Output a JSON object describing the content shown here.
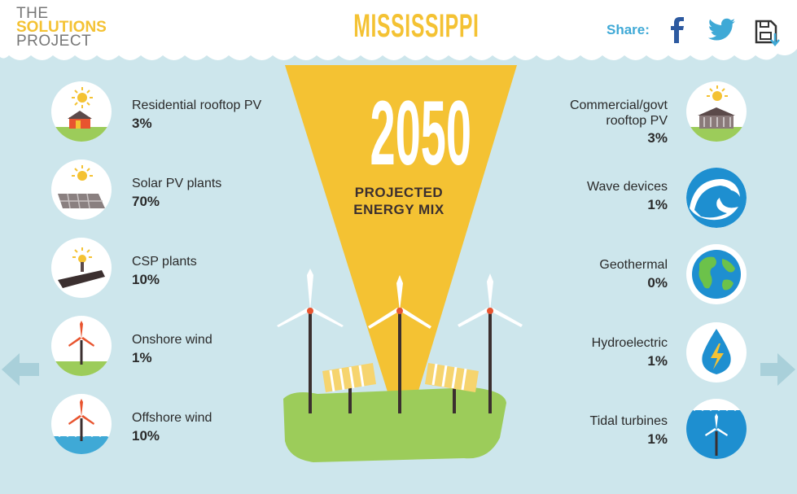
{
  "header": {
    "logo_line1": "THE",
    "logo_line2": "SOLUTIONS",
    "logo_line3": "PROJECT",
    "title": "MISSISSIPPI",
    "share_label": "Share:"
  },
  "center": {
    "year": "2050",
    "subtitle_line1": "PROJECTED",
    "subtitle_line2": "ENERGY MIX"
  },
  "left_items": [
    {
      "label": "Residential rooftop PV",
      "value": "3%",
      "icon": "house-solar-icon"
    },
    {
      "label": "Solar PV plants",
      "value": "70%",
      "icon": "solar-panel-icon"
    },
    {
      "label": "CSP plants",
      "value": "10%",
      "icon": "csp-tower-icon"
    },
    {
      "label": "Onshore wind",
      "value": "1%",
      "icon": "onshore-wind-turbine-icon"
    },
    {
      "label": "Offshore wind",
      "value": "10%",
      "icon": "offshore-wind-turbine-icon"
    }
  ],
  "right_items": [
    {
      "label_line1": "Commercial/govt",
      "label_line2": "rooftop PV",
      "value": "3%",
      "icon": "commercial-building-solar-icon"
    },
    {
      "label": "Wave devices",
      "value": "1%",
      "icon": "wave-icon"
    },
    {
      "label": "Geothermal",
      "value": "0%",
      "icon": "earth-globe-icon"
    },
    {
      "label": "Hydroelectric",
      "value": "1%",
      "icon": "water-drop-icon"
    },
    {
      "label": "Tidal turbines",
      "value": "1%",
      "icon": "tidal-turbine-icon"
    }
  ],
  "colors": {
    "background": "#cde6ec",
    "accent_yellow": "#f4c233",
    "share_blue": "#3fa9d6",
    "grass_green": "#9ccc5a"
  }
}
